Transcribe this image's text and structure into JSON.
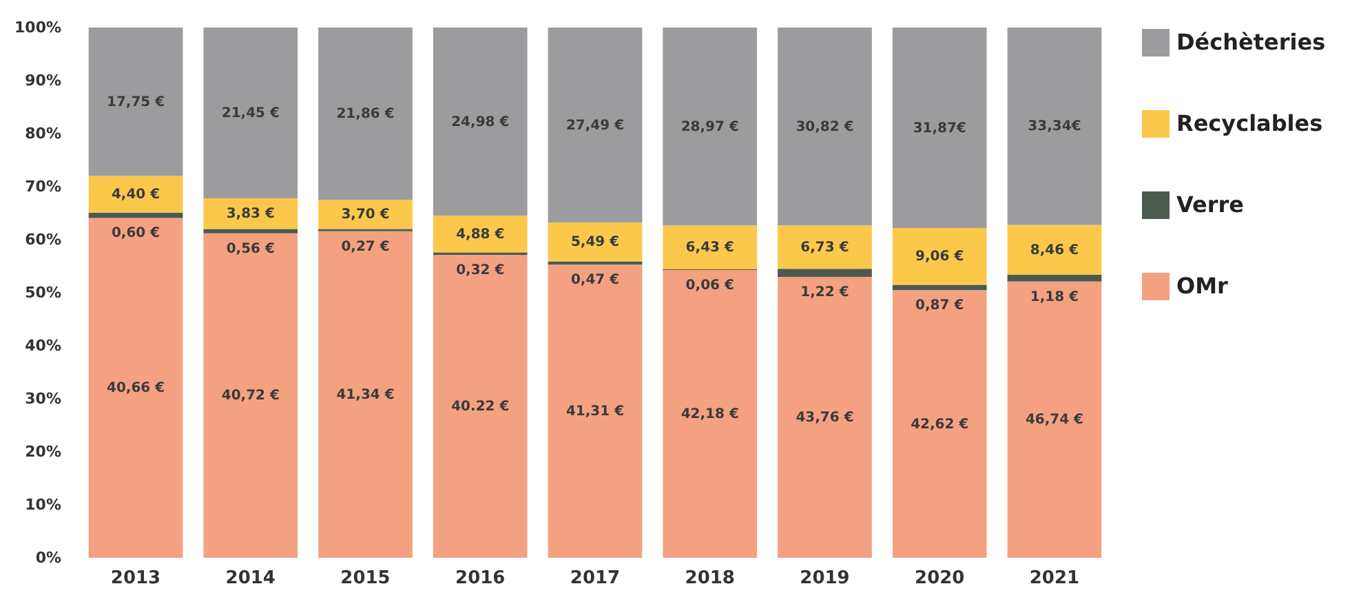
{
  "chart_data": {
    "type": "bar",
    "stacked": true,
    "categories": [
      "2013",
      "2014",
      "2015",
      "2016",
      "2017",
      "2018",
      "2019",
      "2020",
      "2021"
    ],
    "series": [
      {
        "name": "OMr",
        "color": "#f4a182",
        "values": [
          64.1,
          61.2,
          61.6,
          57.1,
          55.3,
          54.3,
          53.0,
          50.5,
          52.1
        ]
      },
      {
        "name": "Verre",
        "color": "#4b5a4f",
        "values": [
          1.0,
          0.8,
          0.4,
          0.5,
          0.6,
          0.1,
          1.5,
          1.0,
          1.3
        ]
      },
      {
        "name": "Recyclables",
        "color": "#fcc84c",
        "values": [
          6.9,
          5.8,
          5.5,
          6.9,
          7.3,
          8.3,
          8.2,
          10.7,
          9.4
        ]
      },
      {
        "name": "Déchèteries",
        "color": "#9c9c9e",
        "values": [
          28.0,
          32.2,
          32.5,
          35.5,
          36.8,
          37.3,
          37.3,
          37.8,
          37.2
        ]
      }
    ],
    "annotations": [
      "40,66 €",
      "40,72 €",
      "41,34 €",
      "40.22 €",
      "41,31 €",
      "42,18 €",
      "43,76 €",
      "42,62 €",
      "46,74 €",
      "0,60 €",
      "0,56 €",
      "0,27 €",
      "0,32 €",
      "0,47 €",
      "0,06 €",
      "1,22 €",
      "0,87 €",
      "1,18 €",
      "4,40 €",
      "3,83 €",
      "3,70 €",
      "4,88 €",
      "5,49 €",
      "6,43 €",
      "6,73 €",
      "9,06 €",
      "8,46 €",
      "17,75 €",
      "21,45 €",
      "21,86 €",
      "24,98 €",
      "27,49 €",
      "28,97 €",
      "30,82 €",
      "31,87€",
      "33,34€"
    ],
    "ylim": [
      0,
      100
    ],
    "yticks": [
      {
        "value": 0,
        "label": "0%"
      },
      {
        "value": 10,
        "label": "10%"
      },
      {
        "value": 20,
        "label": "20%"
      },
      {
        "value": 30,
        "label": "30%"
      },
      {
        "value": 40,
        "label": "40%"
      },
      {
        "value": 50,
        "label": "50%"
      },
      {
        "value": 60,
        "label": "60%"
      },
      {
        "value": 70,
        "label": "70%"
      },
      {
        "value": 80,
        "label": "80%"
      },
      {
        "value": 90,
        "label": "90%"
      },
      {
        "value": 100,
        "label": "100%"
      }
    ],
    "grid": false,
    "legend": "right"
  }
}
